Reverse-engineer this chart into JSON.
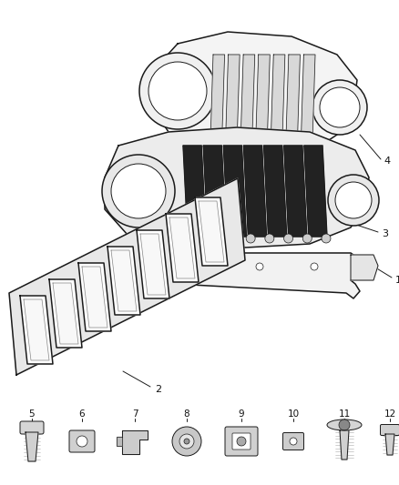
{
  "background_color": "#ffffff",
  "line_color": "#1a1a1a",
  "fig_width": 4.38,
  "fig_height": 5.33,
  "dpi": 100,
  "label_fontsize": 7.5
}
